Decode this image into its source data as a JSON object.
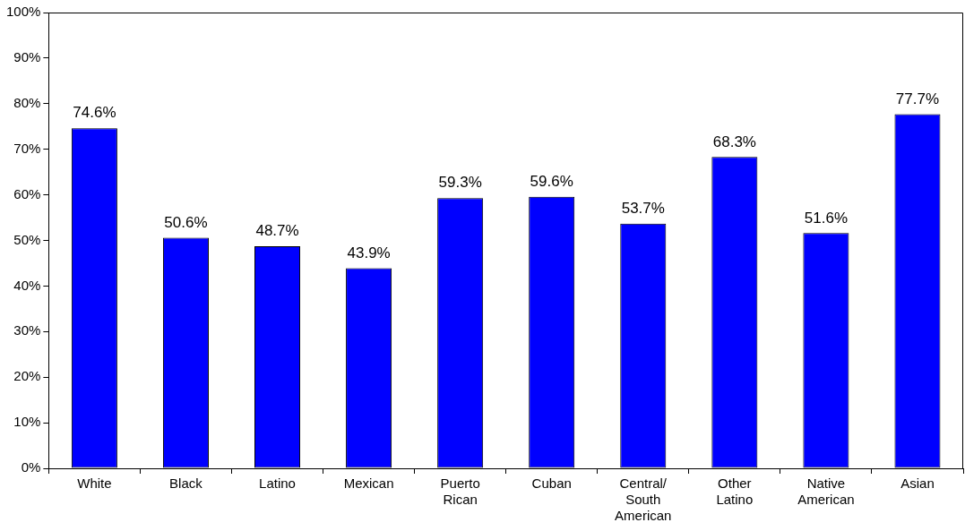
{
  "chart_data": {
    "type": "bar",
    "categories": [
      "White",
      "Black",
      "Latino",
      "Mexican",
      "Puerto Rican",
      "Cuban",
      "Central/ South American",
      "Other Latino",
      "Native American",
      "Asian"
    ],
    "values": [
      74.6,
      50.6,
      48.7,
      43.9,
      59.3,
      59.6,
      53.7,
      68.3,
      51.6,
      77.7
    ],
    "value_labels": [
      "74.6%",
      "50.6%",
      "48.7%",
      "43.9%",
      "59.3%",
      "59.6%",
      "53.7%",
      "68.3%",
      "51.6%",
      "77.7%"
    ],
    "color": "#0000ff",
    "ylim": [
      0,
      100
    ],
    "yticks": [
      {
        "value": 0,
        "label": "0%"
      },
      {
        "value": 10,
        "label": "10%"
      },
      {
        "value": 20,
        "label": "20%"
      },
      {
        "value": 30,
        "label": "30%"
      },
      {
        "value": 40,
        "label": "40%"
      },
      {
        "value": 50,
        "label": "50%"
      },
      {
        "value": 60,
        "label": "60%"
      },
      {
        "value": 70,
        "label": "70%"
      },
      {
        "value": 80,
        "label": "80%"
      },
      {
        "value": 90,
        "label": "90%"
      },
      {
        "value": 100,
        "label": "100%"
      }
    ],
    "grid": false,
    "legend": false
  }
}
